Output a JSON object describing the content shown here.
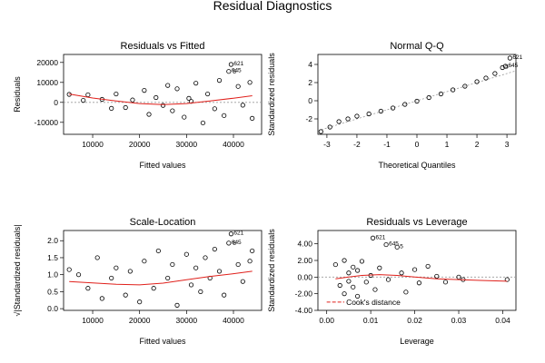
{
  "figure": {
    "title": "Residual Diagnostics"
  },
  "colors": {
    "points": "#000000",
    "smooth": "#e0201b",
    "reference": "#9a9a9a",
    "cooks": "#e0201b"
  },
  "chart_data": [
    {
      "type": "scatter",
      "title": "Residuals vs Fitted",
      "xlabel": "Fitted values",
      "ylabel": "Residuals",
      "xlim": [
        3800,
        46000
      ],
      "ylim": [
        -16000,
        24000
      ],
      "xticks": [
        10000,
        20000,
        30000,
        40000
      ],
      "yticks": [
        -10000,
        0,
        10000,
        20000
      ],
      "reference_line": {
        "y": 0
      },
      "smooth_line": [
        [
          5000,
          4200
        ],
        [
          10000,
          2200
        ],
        [
          15000,
          700
        ],
        [
          20000,
          -600
        ],
        [
          25000,
          -1100
        ],
        [
          30000,
          -600
        ],
        [
          35000,
          700
        ],
        [
          40000,
          2100
        ],
        [
          44000,
          3300
        ]
      ],
      "labels": [
        {
          "text": "621",
          "x": 39500,
          "y": 19000
        },
        {
          "text": "645",
          "x": 39000,
          "y": 15500
        },
        {
          "text": "5",
          "x": 39300,
          "y": 14800
        }
      ],
      "points": [
        [
          5000,
          4000
        ],
        [
          8000,
          1000
        ],
        [
          9000,
          3800
        ],
        [
          12000,
          1500
        ],
        [
          14000,
          -3000
        ],
        [
          15000,
          4200
        ],
        [
          17000,
          -2600
        ],
        [
          18500,
          1200
        ],
        [
          21000,
          6000
        ],
        [
          22000,
          -6000
        ],
        [
          23500,
          2400
        ],
        [
          25000,
          -1500
        ],
        [
          26000,
          8500
        ],
        [
          27000,
          -4200
        ],
        [
          28000,
          6800
        ],
        [
          29500,
          -7400
        ],
        [
          31000,
          500
        ],
        [
          32000,
          9600
        ],
        [
          33500,
          -10300
        ],
        [
          34500,
          4200
        ],
        [
          36000,
          -3200
        ],
        [
          37000,
          11000
        ],
        [
          38000,
          -6600
        ],
        [
          39500,
          19000
        ],
        [
          39000,
          15500
        ],
        [
          41000,
          8000
        ],
        [
          42000,
          -1400
        ],
        [
          43500,
          10000
        ],
        [
          44000,
          -8000
        ],
        [
          30500,
          2000
        ]
      ]
    },
    {
      "type": "scatter",
      "title": "Normal Q-Q",
      "xlabel": "Theoretical Quantiles",
      "ylabel": "Standardized residuals",
      "xlim": [
        -3.3,
        3.3
      ],
      "ylim": [
        -3.7,
        5.1
      ],
      "xticks": [
        -3,
        -2,
        -1,
        0,
        1,
        2,
        3
      ],
      "yticks": [
        -2,
        0,
        2,
        4
      ],
      "reference_line": {
        "from": [
          -3.3,
          -3.3
        ],
        "to": [
          3.3,
          3.3
        ]
      },
      "labels": [
        {
          "text": "621",
          "x": 3.1,
          "y": 4.7
        },
        {
          "text": "645",
          "x": 2.95,
          "y": 3.8
        },
        {
          "text": "5",
          "x": 2.85,
          "y": 3.65
        }
      ],
      "points": [
        [
          -3.2,
          -3.4
        ],
        [
          -2.9,
          -2.9
        ],
        [
          -2.6,
          -2.3
        ],
        [
          -2.3,
          -2.0
        ],
        [
          -2.0,
          -1.7
        ],
        [
          -1.6,
          -1.45
        ],
        [
          -1.2,
          -1.15
        ],
        [
          -0.8,
          -0.8
        ],
        [
          -0.4,
          -0.4
        ],
        [
          0.0,
          -0.05
        ],
        [
          0.4,
          0.35
        ],
        [
          0.8,
          0.75
        ],
        [
          1.2,
          1.2
        ],
        [
          1.6,
          1.6
        ],
        [
          2.0,
          2.1
        ],
        [
          2.3,
          2.5
        ],
        [
          2.6,
          3.0
        ],
        [
          2.85,
          3.65
        ],
        [
          2.95,
          3.8
        ],
        [
          3.1,
          4.7
        ]
      ]
    },
    {
      "type": "scatter",
      "title": "Scale-Location",
      "xlabel": "Fitted values",
      "ylabel": "√|Standardized residuals|",
      "xlim": [
        3800,
        46000
      ],
      "ylim": [
        -0.05,
        2.3
      ],
      "xticks": [
        10000,
        20000,
        30000,
        40000
      ],
      "yticks": [
        0.0,
        0.5,
        1.0,
        1.5,
        2.0
      ],
      "smooth_line": [
        [
          5000,
          0.8
        ],
        [
          10000,
          0.76
        ],
        [
          15000,
          0.72
        ],
        [
          20000,
          0.7
        ],
        [
          25000,
          0.75
        ],
        [
          30000,
          0.85
        ],
        [
          35000,
          0.95
        ],
        [
          40000,
          1.03
        ],
        [
          44000,
          1.1
        ]
      ],
      "labels": [
        {
          "text": "621",
          "x": 39500,
          "y": 2.2
        },
        {
          "text": "645",
          "x": 39000,
          "y": 1.93
        },
        {
          "text": "5",
          "x": 39300,
          "y": 1.9
        }
      ],
      "points": [
        [
          5000,
          1.15
        ],
        [
          7000,
          1.0
        ],
        [
          9000,
          0.6
        ],
        [
          11000,
          1.5
        ],
        [
          12000,
          0.3
        ],
        [
          14000,
          0.9
        ],
        [
          15000,
          1.2
        ],
        [
          17000,
          0.4
        ],
        [
          18000,
          1.1
        ],
        [
          20000,
          0.2
        ],
        [
          21000,
          1.4
        ],
        [
          23000,
          0.6
        ],
        [
          24000,
          1.7
        ],
        [
          26000,
          0.9
        ],
        [
          27000,
          1.3
        ],
        [
          28000,
          0.1
        ],
        [
          30000,
          1.6
        ],
        [
          31000,
          0.7
        ],
        [
          32000,
          1.2
        ],
        [
          33000,
          0.5
        ],
        [
          34000,
          1.5
        ],
        [
          35000,
          0.9
        ],
        [
          36000,
          1.75
        ],
        [
          37000,
          1.1
        ],
        [
          38000,
          0.4
        ],
        [
          39500,
          2.2
        ],
        [
          39000,
          1.93
        ],
        [
          41000,
          1.3
        ],
        [
          42000,
          0.8
        ],
        [
          43500,
          1.4
        ],
        [
          44000,
          1.7
        ]
      ]
    },
    {
      "type": "scatter",
      "title": "Residuals vs Leverage",
      "xlabel": "Leverage",
      "ylabel": "Standardized residuals",
      "xlim": [
        -0.002,
        0.043
      ],
      "ylim": [
        -4.0,
        5.6
      ],
      "xticks": [
        0.0,
        0.01,
        0.02,
        0.03,
        0.04
      ],
      "yticks": [
        -4,
        -2,
        0,
        2,
        4
      ],
      "reference_line": {
        "y": 0
      },
      "smooth_line": [
        [
          0.002,
          -0.2
        ],
        [
          0.005,
          0.0
        ],
        [
          0.008,
          0.2
        ],
        [
          0.012,
          0.3
        ],
        [
          0.016,
          0.2
        ],
        [
          0.02,
          0.0
        ],
        [
          0.025,
          -0.2
        ],
        [
          0.03,
          -0.3
        ],
        [
          0.035,
          -0.4
        ],
        [
          0.041,
          -0.5
        ]
      ],
      "cooks_distance_label": "Cook's distance",
      "cooks_line": [
        [
          0.0,
          -3.0
        ],
        [
          0.004,
          -3.0
        ]
      ],
      "labels": [
        {
          "text": "621",
          "x": 0.0105,
          "y": 4.7
        },
        {
          "text": "645",
          "x": 0.0135,
          "y": 3.9
        },
        {
          "text": "5",
          "x": 0.016,
          "y": 3.6
        }
      ],
      "points": [
        [
          0.002,
          1.5
        ],
        [
          0.003,
          -1.0
        ],
        [
          0.004,
          2.0
        ],
        [
          0.004,
          -2.0
        ],
        [
          0.005,
          0.5
        ],
        [
          0.005,
          -0.5
        ],
        [
          0.006,
          1.2
        ],
        [
          0.006,
          -1.2
        ],
        [
          0.007,
          0.8
        ],
        [
          0.007,
          -2.3
        ],
        [
          0.008,
          1.9
        ],
        [
          0.009,
          -0.6
        ],
        [
          0.01,
          0.2
        ],
        [
          0.0105,
          4.7
        ],
        [
          0.011,
          -1.5
        ],
        [
          0.012,
          1.1
        ],
        [
          0.0135,
          3.9
        ],
        [
          0.014,
          -0.3
        ],
        [
          0.016,
          3.6
        ],
        [
          0.017,
          0.5
        ],
        [
          0.018,
          -1.8
        ],
        [
          0.02,
          0.9
        ],
        [
          0.021,
          -0.7
        ],
        [
          0.023,
          1.3
        ],
        [
          0.025,
          0.1
        ],
        [
          0.027,
          -0.6
        ],
        [
          0.03,
          0.0
        ],
        [
          0.031,
          -0.3
        ],
        [
          0.041,
          -0.3
        ]
      ]
    }
  ]
}
